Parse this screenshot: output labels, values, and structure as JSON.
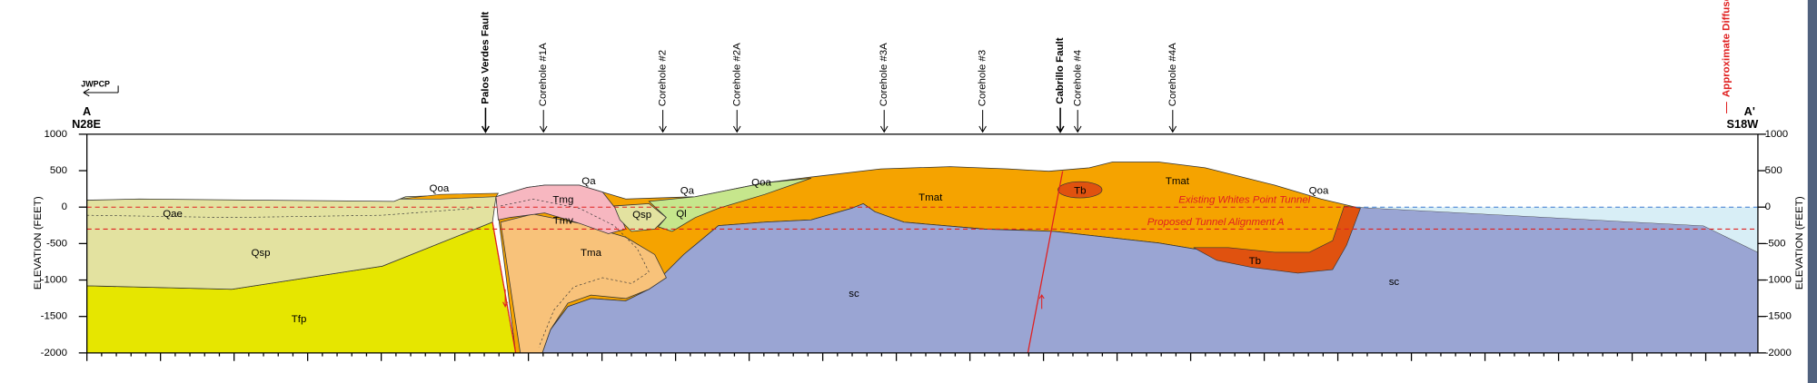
{
  "section": {
    "left_end": {
      "letter": "A",
      "bearing": "N28E",
      "facility": "JWPCP"
    },
    "right_end": {
      "letter": "A'",
      "bearing": "S18W"
    },
    "axis_label": "ELEVATION (FEET)",
    "ylim": [
      -2000,
      1000
    ],
    "yticks": [
      1000,
      500,
      0,
      -500,
      -1000,
      -1500,
      -2000
    ],
    "markers": [
      "Palos Verdes Fault",
      "Corehole #1A",
      "Corehole #2",
      "Corehole #2A",
      "Corehole #3A",
      "Corehole #3",
      "Cabrillo Fault",
      "Corehole #4",
      "Corehole #4A",
      "Approximate Diffuser Location"
    ],
    "tunnels": [
      "Existing Whites Point Tunnel",
      "Proposed Tunnel Alignment A"
    ],
    "units": [
      "Qoa",
      "Qa",
      "Tmg",
      "Tmv",
      "Qsp",
      "Ql",
      "Qa",
      "Qoa",
      "Qae",
      "Qsp",
      "Tfp",
      "Tma",
      "sc",
      "Tmat",
      "Tb",
      "Tmat",
      "Qoa",
      "Tb",
      "sc"
    ]
  }
}
